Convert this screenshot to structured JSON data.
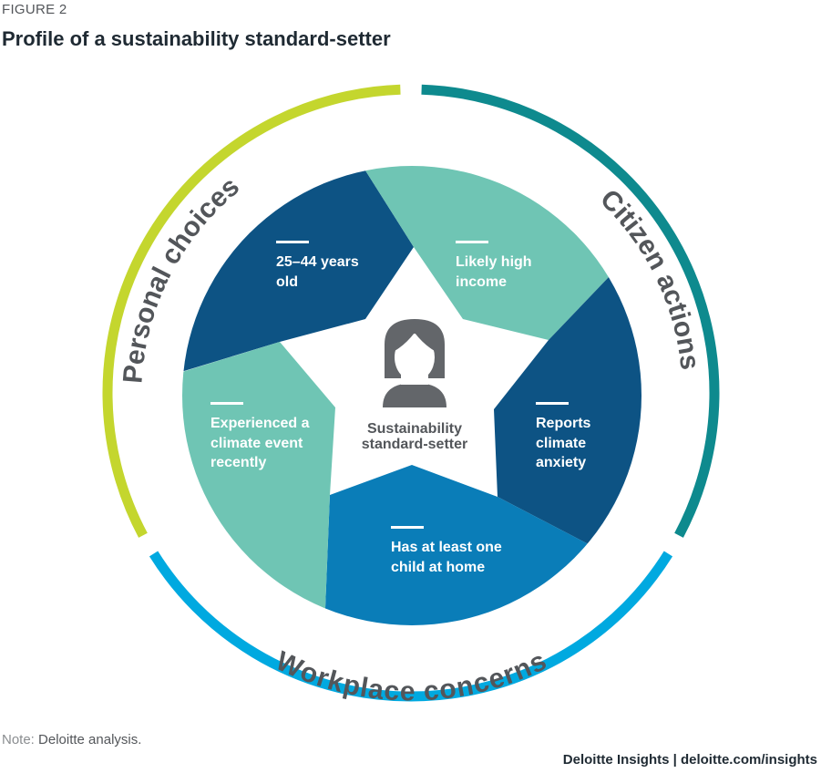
{
  "figure_label": "FIGURE 2",
  "title": "Profile of a sustainability standard-setter",
  "center": {
    "line1": "Sustainability",
    "line2": "standard-setter",
    "icon": "person-icon"
  },
  "segments": [
    {
      "line1": "25–44 years",
      "line2": "old",
      "color": "#0D5384"
    },
    {
      "line1": "Likely high",
      "line2": "income",
      "color": "#6FC5B4"
    },
    {
      "line1": "Reports",
      "line2": "climate",
      "line3": "anxiety",
      "color": "#0D5384"
    },
    {
      "line1": "Has at least one",
      "line2": "child at home",
      "color": "#0A7DB8"
    },
    {
      "line1": "Experienced a",
      "line2": "climate event",
      "line3": "recently",
      "color": "#6FC5B4"
    }
  ],
  "rings": [
    {
      "label": "Personal choices",
      "color": "#C4D62E"
    },
    {
      "label": "Citizen actions",
      "color": "#0E8A8E"
    },
    {
      "label": "Workplace concerns",
      "color": "#00A9E0"
    }
  ],
  "note": {
    "label": "Note:",
    "text": " Deloitte analysis."
  },
  "credit": "Deloitte Insights | deloitte.com/insights"
}
